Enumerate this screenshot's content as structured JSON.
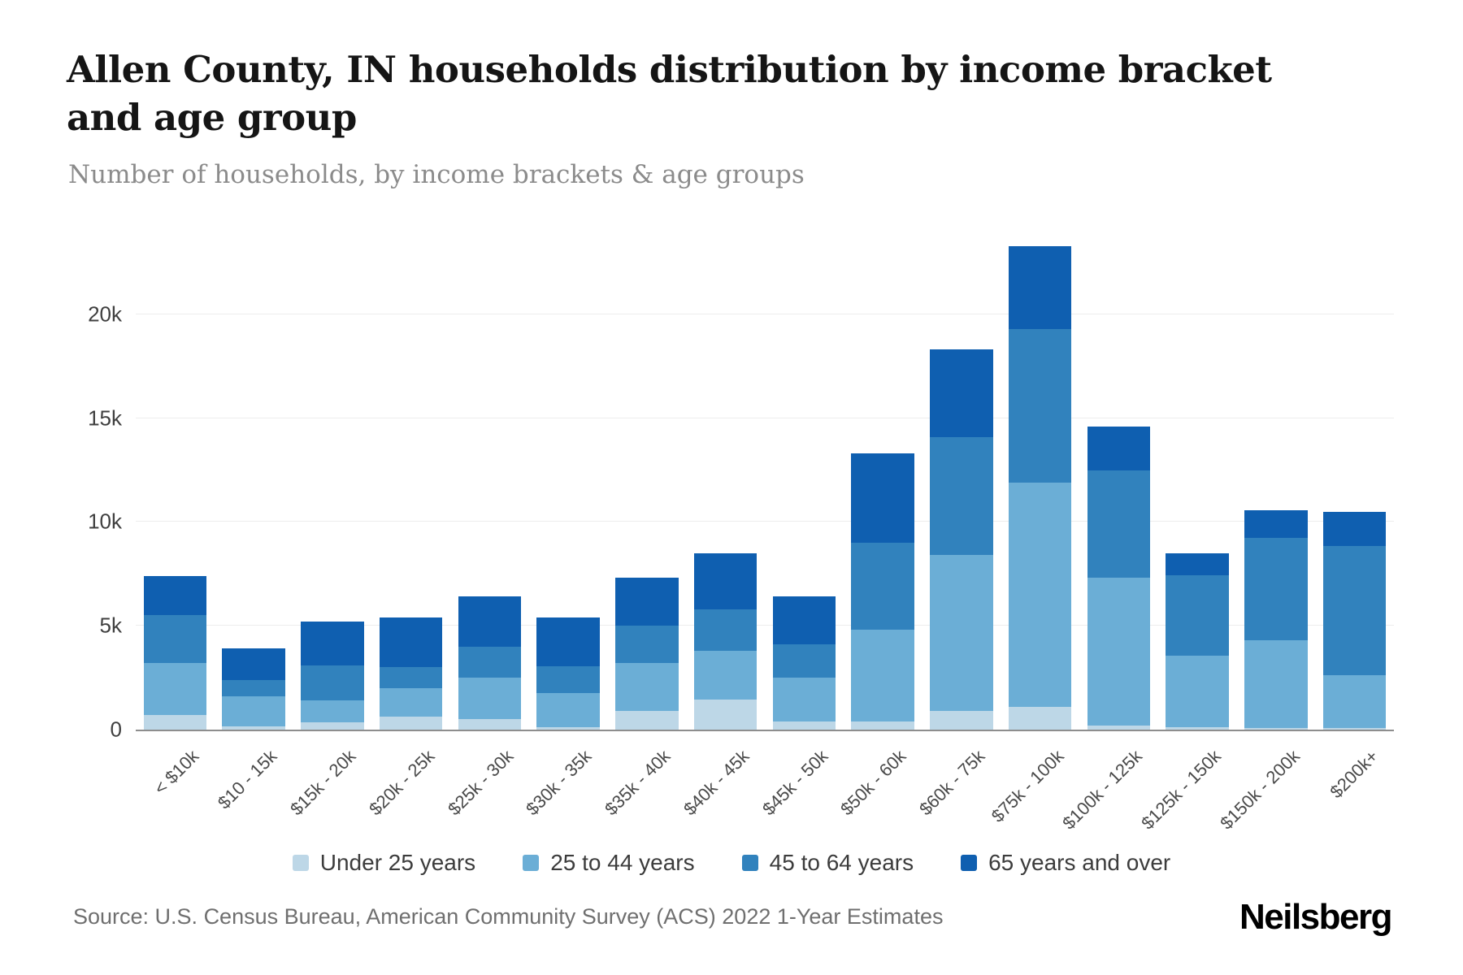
{
  "chart": {
    "title": "Allen County, IN households distribution by income bracket and age group",
    "subtitle": "Number of households, by income brackets & age groups",
    "source": "Source: U.S. Census Bureau, American Community Survey (ACS) 2022 1-Year Estimates",
    "logo": "Neilsberg"
  },
  "chart_data": {
    "type": "bar",
    "stacked": true,
    "title": "Allen County, IN households distribution by income bracket and age group",
    "subtitle": "Number of households, by income brackets & age groups",
    "xlabel": "",
    "ylabel": "Number of households",
    "grid": true,
    "legend_position": "bottom",
    "ylim": [
      0,
      24000
    ],
    "yticks": [
      {
        "value": 0,
        "label": "0"
      },
      {
        "value": 5000,
        "label": "5k"
      },
      {
        "value": 10000,
        "label": "10k"
      },
      {
        "value": 15000,
        "label": "15k"
      },
      {
        "value": 20000,
        "label": "20k"
      }
    ],
    "categories": [
      "< $10k",
      "$10 - 15k",
      "$15k - 20k",
      "$20k - 25k",
      "$25k - 30k",
      "$30k - 35k",
      "$35k - 40k",
      "$40k - 45k",
      "$45k - 50k",
      "$50k - 60k",
      "$60k - 75k",
      "$75k - 100k",
      "$100k - 125k",
      "$125k - 150k",
      "$150k - 200k",
      "$200k+"
    ],
    "series": [
      {
        "name": "Under 25 years",
        "color": "#bdd7e7",
        "values": [
          700,
          150,
          350,
          600,
          500,
          100,
          900,
          1450,
          400,
          400,
          900,
          1100,
          200,
          100,
          50,
          50
        ]
      },
      {
        "name": "25 to 44 years",
        "color": "#6baed6",
        "values": [
          2500,
          1450,
          1050,
          1400,
          2000,
          1650,
          2300,
          2350,
          2100,
          4400,
          7500,
          10800,
          7100,
          3450,
          4250,
          2550
        ]
      },
      {
        "name": "45 to 64 years",
        "color": "#3182bd",
        "values": [
          2300,
          800,
          1700,
          1000,
          1500,
          1300,
          1800,
          2000,
          1600,
          4200,
          5700,
          7400,
          5200,
          3900,
          4950,
          6250
        ]
      },
      {
        "name": "65 years and over",
        "color": "#0f5fb0",
        "values": [
          1900,
          1500,
          2100,
          2400,
          2400,
          2350,
          2300,
          2700,
          2300,
          4300,
          4200,
          4000,
          2100,
          1050,
          1300,
          1650
        ]
      }
    ]
  }
}
